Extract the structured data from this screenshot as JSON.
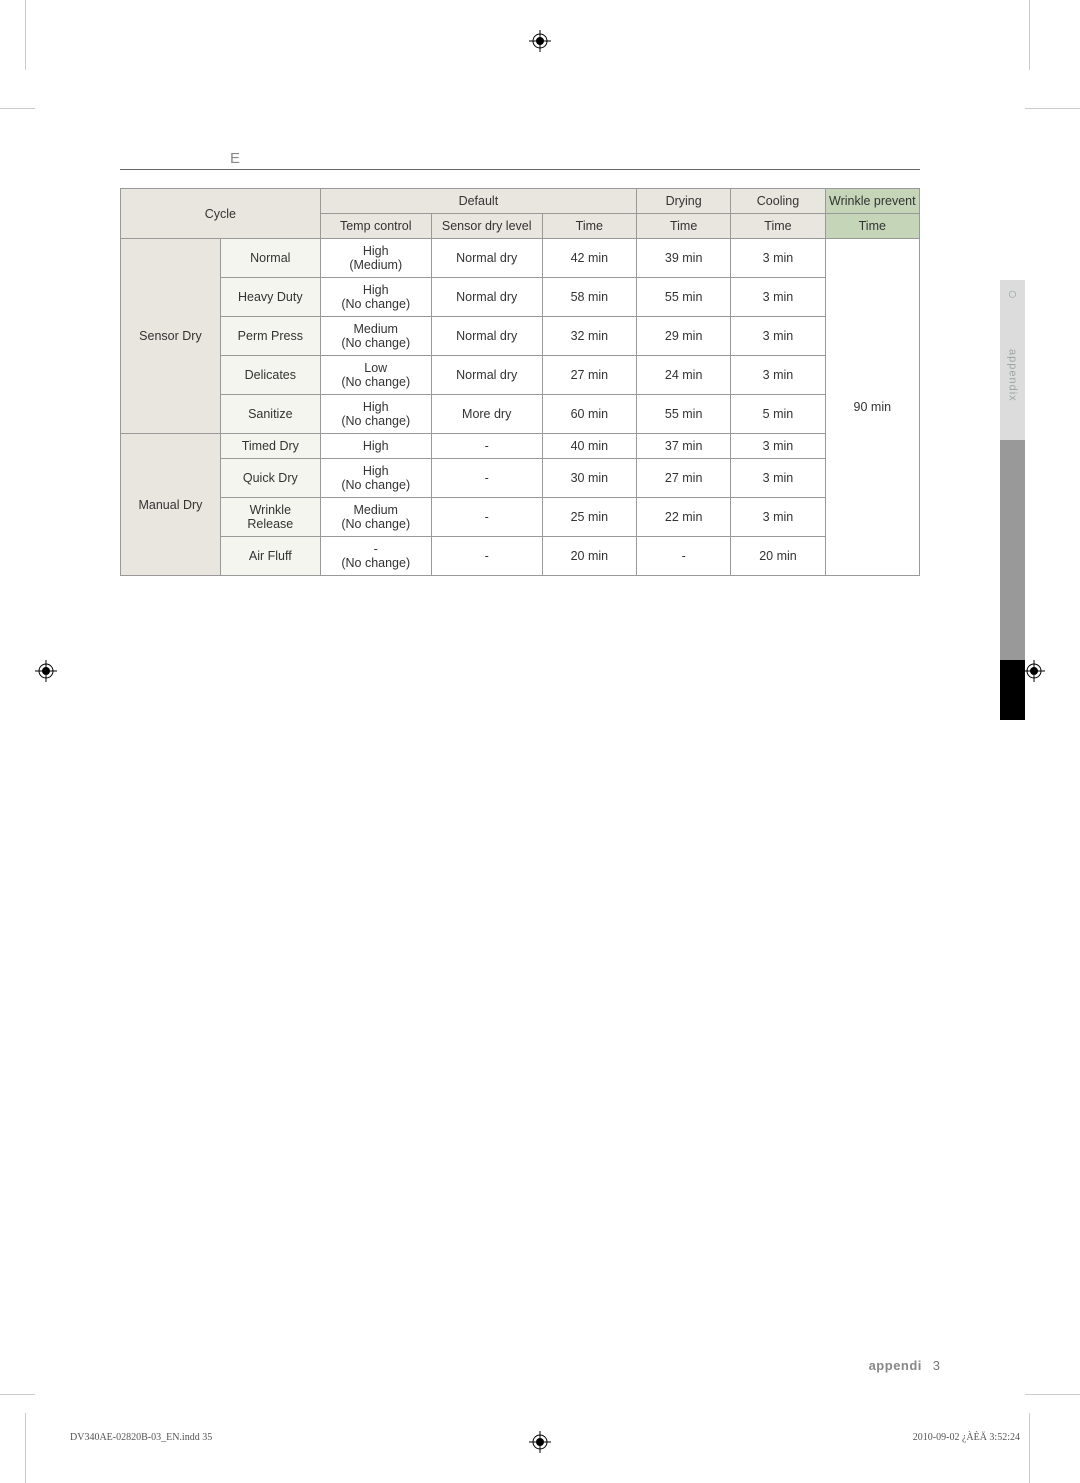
{
  "heading_char": "E",
  "headers": {
    "cycle": "Cycle",
    "default": "Default",
    "drying": "Drying",
    "cooling": "Cooling",
    "wrinkle": "Wrinkle prevent",
    "temp": "Temp control",
    "sensor": "Sensor dry level",
    "time": "Time"
  },
  "groups": [
    {
      "name": "Sensor Dry"
    },
    {
      "name": "Manual Dry"
    }
  ],
  "rows": [
    {
      "g": 0,
      "cycle": "Normal",
      "temp": "High",
      "temp2": "(Medium)",
      "sensor": "Normal dry",
      "t1": "42 min",
      "t2": "39 min",
      "t3": "3 min"
    },
    {
      "g": 0,
      "cycle": "Heavy Duty",
      "temp": "High",
      "temp2": "(No change)",
      "sensor": "Normal dry",
      "t1": "58 min",
      "t2": "55 min",
      "t3": "3 min"
    },
    {
      "g": 0,
      "cycle": "Perm Press",
      "temp": "Medium",
      "temp2": "(No change)",
      "sensor": "Normal dry",
      "t1": "32 min",
      "t2": "29 min",
      "t3": "3 min"
    },
    {
      "g": 0,
      "cycle": "Delicates",
      "temp": "Low",
      "temp2": "(No change)",
      "sensor": "Normal dry",
      "t1": "27 min",
      "t2": "24 min",
      "t3": "3 min"
    },
    {
      "g": 0,
      "cycle": "Sanitize",
      "temp": "High",
      "temp2": "(No change)",
      "sensor": "More dry",
      "t1": "60 min",
      "t2": "55 min",
      "t3": "5 min"
    },
    {
      "g": 1,
      "cycle": "Timed Dry",
      "temp": "High",
      "temp2": "",
      "sensor": "-",
      "t1": "40 min",
      "t2": "37 min",
      "t3": "3 min"
    },
    {
      "g": 1,
      "cycle": "Quick Dry",
      "temp": "High",
      "temp2": "(No change)",
      "sensor": "-",
      "t1": "30 min",
      "t2": "27 min",
      "t3": "3 min"
    },
    {
      "g": 1,
      "cycle": "Wrinkle Release",
      "temp": "Medium",
      "temp2": "(No change)",
      "sensor": "-",
      "t1": "25 min",
      "t2": "22 min",
      "t3": "3 min"
    },
    {
      "g": 1,
      "cycle": "Air Fluff",
      "temp": "-",
      "temp2": "(No change)",
      "sensor": "-",
      "t1": "20 min",
      "t2": "-",
      "t3": "20 min"
    }
  ],
  "wrinkle_time": "90 min",
  "side_tab": {
    "label": "appendix",
    "marker": "○"
  },
  "footer": {
    "label": "appendi",
    "page": "3"
  },
  "indd": "DV340AE-02820B-03_EN.indd   35",
  "timestamp": "2010-09-02   ¿ÀÈÄ 3:52:24"
}
